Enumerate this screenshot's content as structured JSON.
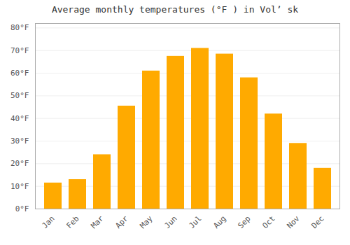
{
  "chart_data": {
    "type": "bar",
    "title": "Average monthly temperatures (°F ) in Volʼ sk",
    "categories": [
      "Jan",
      "Feb",
      "Mar",
      "Apr",
      "May",
      "Jun",
      "Jul",
      "Aug",
      "Sep",
      "Oct",
      "Nov",
      "Dec"
    ],
    "values": [
      11.5,
      13.0,
      24.0,
      45.5,
      61.0,
      67.5,
      71.0,
      68.5,
      58.0,
      42.0,
      29.0,
      18.0
    ],
    "color": "#FFAA00",
    "ylim": [
      0,
      82
    ],
    "yticks": [
      {
        "value": 0,
        "label": "0°F"
      },
      {
        "value": 10,
        "label": "10°F"
      },
      {
        "value": 20,
        "label": "20°F"
      },
      {
        "value": 30,
        "label": "30°F"
      },
      {
        "value": 40,
        "label": "40°F"
      },
      {
        "value": 50,
        "label": "50°F"
      },
      {
        "value": 60,
        "label": "60°F"
      },
      {
        "value": 70,
        "label": "70°F"
      },
      {
        "value": 80,
        "label": "80°F"
      }
    ],
    "grid": true
  }
}
